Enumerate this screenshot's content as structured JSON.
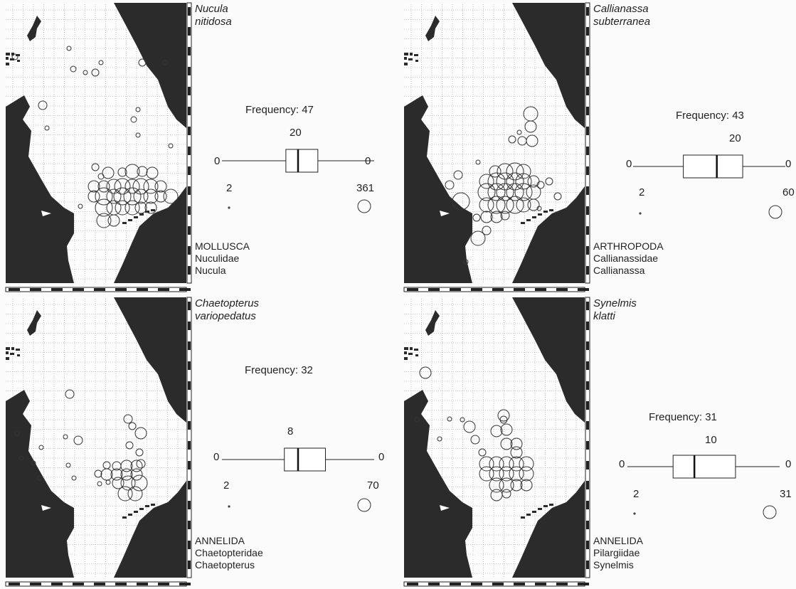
{
  "panels": [
    {
      "species_line1": "Nucula",
      "species_line2": "nitidosa",
      "phylum": "MOLLUSCA",
      "family": "Nuculidae",
      "genus": "Nucula",
      "frequency_label": "Frequency: 47",
      "median": "20",
      "whisker_left": "0",
      "whisker_right": "0",
      "min_value": "2",
      "max_value": "361",
      "box_stats": {
        "q1": 0.42,
        "median": 0.5,
        "q3": 0.63
      },
      "records": [
        [
          97,
          68,
          3
        ],
        [
          66,
          180,
          3
        ],
        [
          60,
          148,
          6
        ],
        [
          103,
          97,
          4
        ],
        [
          21,
          80,
          4
        ],
        [
          120,
          102,
          3
        ],
        [
          134,
          102,
          5
        ],
        [
          142,
          88,
          3
        ],
        [
          200,
          88,
          5
        ],
        [
          232,
          88,
          3
        ],
        [
          194,
          154,
          3
        ],
        [
          188,
          168,
          4
        ],
        [
          194,
          190,
          3
        ],
        [
          240,
          205,
          3
        ],
        [
          134,
          235,
          5
        ],
        [
          142,
          248,
          4
        ],
        [
          152,
          243,
          8
        ],
        [
          172,
          242,
          6
        ],
        [
          186,
          241,
          10
        ],
        [
          200,
          241,
          7
        ],
        [
          214,
          243,
          8
        ],
        [
          132,
          262,
          8
        ],
        [
          146,
          262,
          8
        ],
        [
          160,
          262,
          10
        ],
        [
          172,
          262,
          11
        ],
        [
          186,
          262,
          10
        ],
        [
          198,
          262,
          11
        ],
        [
          212,
          262,
          10
        ],
        [
          226,
          262,
          8
        ],
        [
          132,
          276,
          8
        ],
        [
          146,
          276,
          12
        ],
        [
          160,
          276,
          10
        ],
        [
          172,
          276,
          12
        ],
        [
          186,
          276,
          12
        ],
        [
          198,
          276,
          10
        ],
        [
          212,
          276,
          10
        ],
        [
          226,
          276,
          8
        ],
        [
          240,
          276,
          10
        ],
        [
          146,
          292,
          12
        ],
        [
          160,
          292,
          10
        ],
        [
          172,
          292,
          10
        ],
        [
          186,
          292,
          10
        ],
        [
          198,
          292,
          8
        ],
        [
          212,
          292,
          8
        ],
        [
          146,
          310,
          10
        ],
        [
          160,
          310,
          8
        ],
        [
          113,
          290,
          3
        ]
      ]
    },
    {
      "species_line1": "Callianassa",
      "species_line2": "subterranea",
      "phylum": "ARTHROPODA",
      "family": "Callianassidae",
      "genus": "Callianassa",
      "frequency_label": "Frequency: 43",
      "median": "20",
      "whisker_left": "0",
      "whisker_right": "0",
      "min_value": "2",
      "max_value": "60",
      "box_stats": {
        "q1": 0.33,
        "median": 0.55,
        "q3": 0.72
      },
      "records": [
        [
          186,
          160,
          10
        ],
        [
          186,
          178,
          8
        ],
        [
          170,
          186,
          3
        ],
        [
          160,
          196,
          5
        ],
        [
          174,
          198,
          6
        ],
        [
          188,
          198,
          8
        ],
        [
          84,
          246,
          6
        ],
        [
          72,
          260,
          6
        ],
        [
          112,
          228,
          3
        ],
        [
          136,
          241,
          8
        ],
        [
          150,
          241,
          11
        ],
        [
          164,
          241,
          12
        ],
        [
          176,
          241,
          10
        ],
        [
          124,
          255,
          10
        ],
        [
          138,
          255,
          12
        ],
        [
          150,
          255,
          12
        ],
        [
          164,
          255,
          12
        ],
        [
          176,
          255,
          11
        ],
        [
          190,
          255,
          8
        ],
        [
          212,
          255,
          5
        ],
        [
          124,
          270,
          12
        ],
        [
          138,
          270,
          12
        ],
        [
          150,
          270,
          12
        ],
        [
          164,
          270,
          12
        ],
        [
          176,
          270,
          12
        ],
        [
          190,
          270,
          10
        ],
        [
          200,
          260,
          5
        ],
        [
          224,
          276,
          5
        ],
        [
          124,
          288,
          10
        ],
        [
          138,
          288,
          12
        ],
        [
          150,
          288,
          12
        ],
        [
          164,
          288,
          12
        ],
        [
          176,
          288,
          10
        ],
        [
          190,
          288,
          8
        ],
        [
          88,
          283,
          12
        ],
        [
          110,
          306,
          5
        ],
        [
          124,
          305,
          8
        ],
        [
          138,
          305,
          8
        ],
        [
          150,
          303,
          6
        ],
        [
          124,
          324,
          6
        ],
        [
          112,
          335,
          10
        ],
        [
          95,
          368,
          3
        ],
        [
          198,
          293,
          3
        ]
      ]
    },
    {
      "species_line1": "Chaetopterus",
      "species_line2": "variopedatus",
      "phylum": "ANNELIDA",
      "family": "Chaetopteridae",
      "genus": "Chaetopterus",
      "frequency_label": "Frequency: 32",
      "median": "8",
      "whisker_left": "0",
      "whisker_right": "0",
      "min_value": "2",
      "max_value": "70",
      "box_stats": {
        "q1": 0.41,
        "median": 0.5,
        "q3": 0.68
      },
      "records": [
        [
          98,
          140,
          6
        ],
        [
          24,
          195,
          3
        ],
        [
          92,
          200,
          3
        ],
        [
          110,
          205,
          6
        ],
        [
          58,
          215,
          3
        ],
        [
          30,
          230,
          3
        ],
        [
          47,
          237,
          3
        ],
        [
          96,
          240,
          3
        ],
        [
          56,
          258,
          3
        ],
        [
          104,
          258,
          3
        ],
        [
          180,
          175,
          6
        ],
        [
          186,
          185,
          5
        ],
        [
          198,
          195,
          8
        ],
        [
          182,
          212,
          5
        ],
        [
          196,
          222,
          5
        ],
        [
          198,
          238,
          6
        ],
        [
          150,
          240,
          5
        ],
        [
          164,
          241,
          6
        ],
        [
          178,
          241,
          8
        ],
        [
          192,
          241,
          8
        ],
        [
          138,
          252,
          5
        ],
        [
          150,
          253,
          8
        ],
        [
          164,
          253,
          8
        ],
        [
          178,
          253,
          8
        ],
        [
          192,
          253,
          8
        ],
        [
          166,
          265,
          8
        ],
        [
          180,
          265,
          10
        ],
        [
          196,
          265,
          11
        ],
        [
          176,
          280,
          10
        ],
        [
          190,
          280,
          10
        ],
        [
          152,
          264,
          3
        ],
        [
          140,
          266,
          3
        ]
      ]
    },
    {
      "species_line1": "Synelmis",
      "species_line2": "klatti",
      "phylum": "ANNELIDA",
      "family": "Pilargiidae",
      "genus": "Synelmis",
      "frequency_label": "Frequency: 31",
      "median": "10",
      "whisker_left": "0",
      "whisker_right": "0",
      "min_value": "2",
      "max_value": "31",
      "box_stats": {
        "q1": 0.3,
        "median": 0.44,
        "q3": 0.71
      },
      "records": [
        [
          38,
          110,
          8
        ],
        [
          72,
          175,
          3
        ],
        [
          90,
          176,
          3
        ],
        [
          100,
          186,
          8
        ],
        [
          108,
          204,
          6
        ],
        [
          118,
          222,
          5
        ],
        [
          148,
          170,
          8
        ],
        [
          148,
          176,
          5
        ],
        [
          138,
          192,
          8
        ],
        [
          152,
          190,
          8
        ],
        [
          152,
          210,
          8
        ],
        [
          166,
          210,
          8
        ],
        [
          166,
          222,
          8
        ],
        [
          124,
          238,
          10
        ],
        [
          138,
          238,
          10
        ],
        [
          152,
          238,
          10
        ],
        [
          166,
          238,
          10
        ],
        [
          180,
          238,
          10
        ],
        [
          124,
          252,
          10
        ],
        [
          138,
          252,
          10
        ],
        [
          152,
          252,
          10
        ],
        [
          166,
          252,
          10
        ],
        [
          180,
          252,
          10
        ],
        [
          138,
          268,
          10
        ],
        [
          152,
          268,
          10
        ],
        [
          166,
          268,
          8
        ],
        [
          180,
          268,
          8
        ],
        [
          138,
          282,
          8
        ],
        [
          152,
          280,
          6
        ],
        [
          26,
          176,
          3
        ],
        [
          58,
          203,
          3
        ]
      ]
    }
  ]
}
